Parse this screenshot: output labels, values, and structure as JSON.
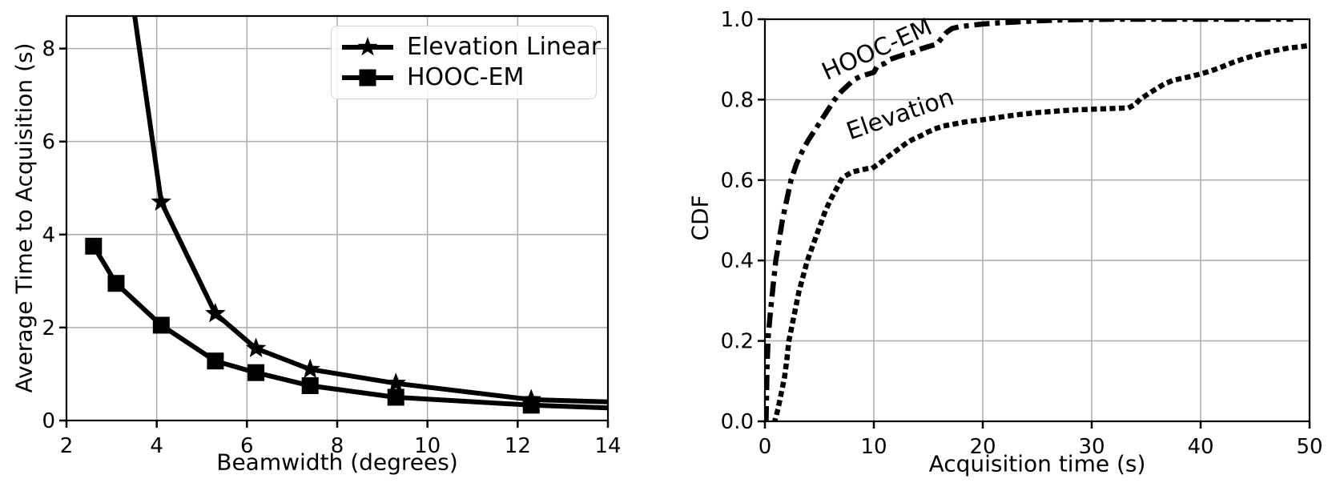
{
  "figure": {
    "background": "#ffffff",
    "text_color": "#000000"
  },
  "chart_data": [
    {
      "type": "line",
      "title": "",
      "xlabel": "Beamwidth (degrees)",
      "ylabel": "Average Time to Acquisition (s)",
      "xlim": [
        2,
        14
      ],
      "ylim": [
        0,
        8.7
      ],
      "xticks": [
        2,
        4,
        6,
        8,
        10,
        12,
        14
      ],
      "xtick_labels": [
        "2",
        "4",
        "6",
        "8",
        "10",
        "12",
        "14"
      ],
      "yticks": [
        0,
        2,
        4,
        6,
        8
      ],
      "ytick_labels": [
        "0",
        "2",
        "4",
        "6",
        "8"
      ],
      "grid": true,
      "grid_color": "#b0b0b0",
      "line_color": "#000000",
      "legend": {
        "position": "upper right",
        "entries": [
          {
            "label": "Elevation Linear",
            "marker": "star"
          },
          {
            "label": "HOOC-EM",
            "marker": "square"
          }
        ]
      },
      "series": [
        {
          "name": "Elevation Linear",
          "marker": "star",
          "linestyle": "solid",
          "points": [
            [
              3.1,
              11.5
            ],
            [
              4.1,
              4.7
            ],
            [
              5.3,
              2.3
            ],
            [
              6.2,
              1.55
            ],
            [
              7.4,
              1.1
            ],
            [
              9.3,
              0.8
            ],
            [
              12.3,
              0.45
            ],
            [
              14,
              0.4
            ]
          ],
          "marker_points": [
            [
              4.1,
              4.7
            ],
            [
              5.3,
              2.3
            ],
            [
              6.2,
              1.55
            ],
            [
              7.4,
              1.1
            ],
            [
              9.3,
              0.8
            ],
            [
              12.3,
              0.45
            ]
          ]
        },
        {
          "name": "HOOC-EM",
          "marker": "square",
          "linestyle": "solid",
          "points": [
            [
              2.6,
              3.75
            ],
            [
              3.1,
              2.95
            ],
            [
              4.1,
              2.05
            ],
            [
              5.3,
              1.28
            ],
            [
              6.2,
              1.03
            ],
            [
              7.4,
              0.75
            ],
            [
              9.3,
              0.5
            ],
            [
              12.3,
              0.33
            ],
            [
              14,
              0.27
            ]
          ],
          "marker_points": [
            [
              2.6,
              3.75
            ],
            [
              3.1,
              2.95
            ],
            [
              4.1,
              2.05
            ],
            [
              5.3,
              1.28
            ],
            [
              6.2,
              1.03
            ],
            [
              7.4,
              0.75
            ],
            [
              9.3,
              0.5
            ],
            [
              12.3,
              0.33
            ]
          ]
        }
      ]
    },
    {
      "type": "line",
      "title": "",
      "xlabel": "Acquisition time (s)",
      "ylabel": "CDF",
      "xlim": [
        0,
        50
      ],
      "ylim": [
        0,
        1.0
      ],
      "xticks": [
        0,
        10,
        20,
        30,
        40,
        50
      ],
      "xtick_labels": [
        "0",
        "10",
        "20",
        "30",
        "40",
        "50"
      ],
      "yticks": [
        0,
        0.2,
        0.4,
        0.6,
        0.8,
        1.0
      ],
      "ytick_labels": [
        "0.0",
        "0.2",
        "0.4",
        "0.6",
        "0.8",
        "1.0"
      ],
      "grid": true,
      "grid_color": "#b0b0b0",
      "line_color": "#000000",
      "annotations": [
        {
          "text": "HOOC-EM",
          "x": 10.3,
          "y": 0.92,
          "rotation": -24
        },
        {
          "text": "Elevation",
          "x": 12.4,
          "y": 0.76,
          "rotation": -19
        }
      ],
      "series": [
        {
          "name": "HOOC-EM",
          "marker": "none",
          "linestyle": "dashdot",
          "points": [
            [
              0.1,
              0
            ],
            [
              0.15,
              0.06
            ],
            [
              0.2,
              0.14
            ],
            [
              0.3,
              0.21
            ],
            [
              0.5,
              0.27
            ],
            [
              0.8,
              0.35
            ],
            [
              1.0,
              0.4
            ],
            [
              1.3,
              0.45
            ],
            [
              1.6,
              0.5
            ],
            [
              2.0,
              0.55
            ],
            [
              2.4,
              0.6
            ],
            [
              2.9,
              0.64
            ],
            [
              3.4,
              0.67
            ],
            [
              4.0,
              0.7
            ],
            [
              4.6,
              0.725
            ],
            [
              5.2,
              0.75
            ],
            [
              5.8,
              0.775
            ],
            [
              6.4,
              0.8
            ],
            [
              7.0,
              0.82
            ],
            [
              7.6,
              0.835
            ],
            [
              8.2,
              0.85
            ],
            [
              8.8,
              0.858
            ],
            [
              9.4,
              0.863
            ],
            [
              10.0,
              0.868
            ],
            [
              10.3,
              0.883
            ],
            [
              11.0,
              0.89
            ],
            [
              11.5,
              0.9
            ],
            [
              12.0,
              0.905
            ],
            [
              12.8,
              0.912
            ],
            [
              13.6,
              0.917
            ],
            [
              14.2,
              0.925
            ],
            [
              15.0,
              0.932
            ],
            [
              15.8,
              0.938
            ],
            [
              16.2,
              0.952
            ],
            [
              16.7,
              0.968
            ],
            [
              17.2,
              0.977
            ],
            [
              18.0,
              0.982
            ],
            [
              19.0,
              0.985
            ],
            [
              20.0,
              0.988
            ],
            [
              21.5,
              0.991
            ],
            [
              23.0,
              0.993
            ],
            [
              25.0,
              0.996
            ],
            [
              27.0,
              0.998
            ],
            [
              29.0,
              0.999
            ],
            [
              32.0,
              1.0
            ],
            [
              48.5,
              1.0
            ]
          ]
        },
        {
          "name": "Elevation",
          "marker": "none",
          "linestyle": "dotted",
          "points": [
            [
              0.9,
              0
            ],
            [
              1.2,
              0.03
            ],
            [
              1.5,
              0.07
            ],
            [
              1.8,
              0.11
            ],
            [
              2.0,
              0.15
            ],
            [
              2.2,
              0.2
            ],
            [
              2.5,
              0.24
            ],
            [
              2.8,
              0.28
            ],
            [
              3.1,
              0.32
            ],
            [
              3.4,
              0.35
            ],
            [
              3.9,
              0.4
            ],
            [
              4.3,
              0.43
            ],
            [
              4.7,
              0.46
            ],
            [
              5.1,
              0.49
            ],
            [
              5.5,
              0.52
            ],
            [
              6.0,
              0.55
            ],
            [
              6.5,
              0.575
            ],
            [
              7.0,
              0.6
            ],
            [
              7.5,
              0.612
            ],
            [
              8.0,
              0.62
            ],
            [
              9.0,
              0.626
            ],
            [
              10.0,
              0.632
            ],
            [
              10.7,
              0.645
            ],
            [
              11.4,
              0.66
            ],
            [
              12.0,
              0.672
            ],
            [
              12.9,
              0.69
            ],
            [
              13.5,
              0.7
            ],
            [
              14.3,
              0.71
            ],
            [
              15.0,
              0.72
            ],
            [
              15.8,
              0.729
            ],
            [
              16.5,
              0.735
            ],
            [
              17.3,
              0.739
            ],
            [
              18.5,
              0.745
            ],
            [
              20.0,
              0.75
            ],
            [
              21.0,
              0.754
            ],
            [
              22.0,
              0.758
            ],
            [
              23.0,
              0.762
            ],
            [
              24.0,
              0.765
            ],
            [
              25.0,
              0.768
            ],
            [
              26.0,
              0.77
            ],
            [
              27.0,
              0.772
            ],
            [
              28.0,
              0.774
            ],
            [
              29.0,
              0.775
            ],
            [
              30.0,
              0.776
            ],
            [
              31.0,
              0.777
            ],
            [
              32.0,
              0.778
            ],
            [
              33.0,
              0.779
            ],
            [
              33.5,
              0.781
            ],
            [
              34.0,
              0.788
            ],
            [
              34.4,
              0.8
            ],
            [
              34.9,
              0.809
            ],
            [
              35.4,
              0.818
            ],
            [
              36.0,
              0.828
            ],
            [
              36.6,
              0.838
            ],
            [
              37.2,
              0.845
            ],
            [
              37.8,
              0.85
            ],
            [
              38.8,
              0.856
            ],
            [
              40.0,
              0.864
            ],
            [
              41.0,
              0.872
            ],
            [
              42.0,
              0.882
            ],
            [
              43.0,
              0.893
            ],
            [
              44.0,
              0.902
            ],
            [
              45.0,
              0.91
            ],
            [
              46.0,
              0.917
            ],
            [
              47.0,
              0.923
            ],
            [
              48.0,
              0.928
            ],
            [
              49.0,
              0.931
            ],
            [
              49.8,
              0.934
            ]
          ]
        }
      ]
    }
  ]
}
